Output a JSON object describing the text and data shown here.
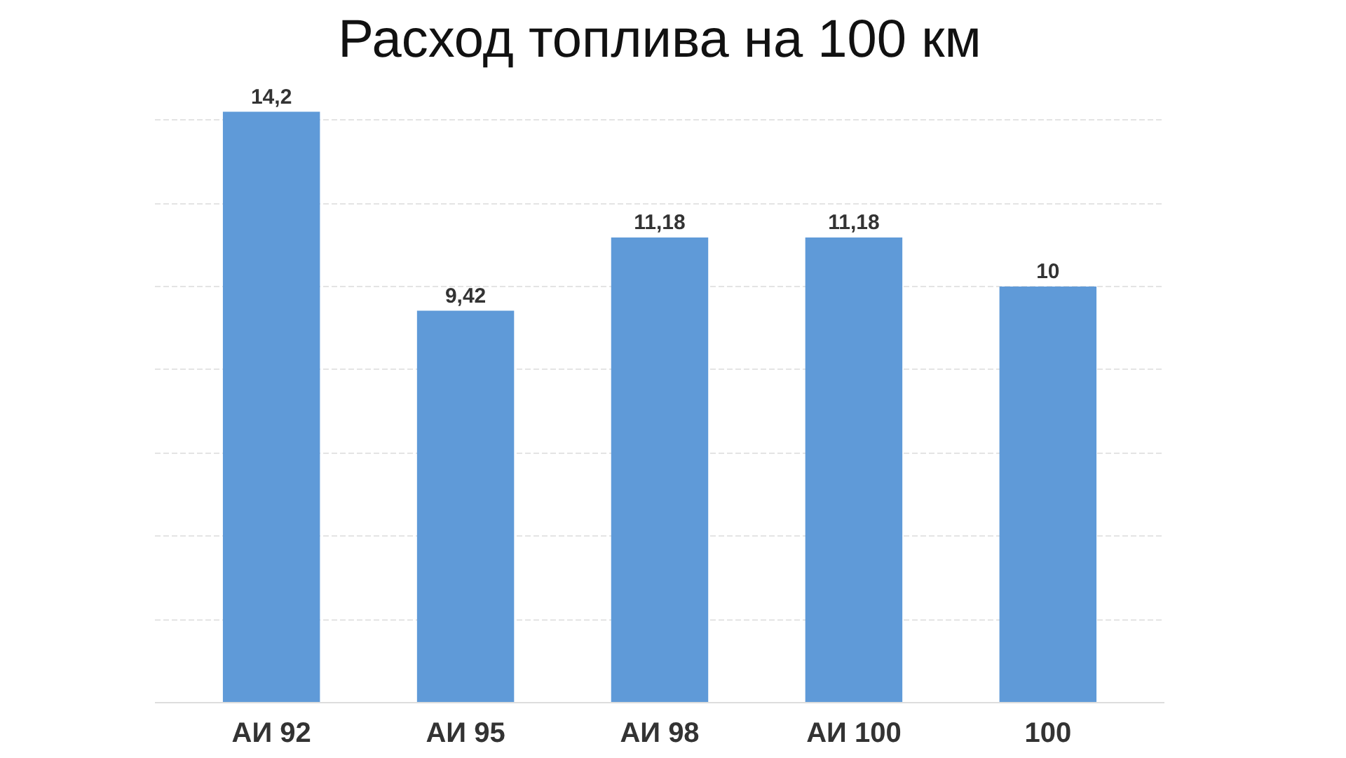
{
  "chart_data": {
    "type": "bar",
    "title": "Расход топлива на 100 км",
    "categories": [
      "АИ 92",
      "АИ 95",
      "АИ 98",
      "АИ 100",
      "100"
    ],
    "values": [
      14.2,
      9.42,
      11.18,
      11.18,
      10
    ],
    "value_labels": [
      "14,2",
      "9,42",
      "11,18",
      "11,18",
      "10"
    ],
    "color": "#5f9ad8",
    "yticks": [
      {
        "value": 0,
        "label": null
      },
      {
        "value": 2,
        "label": null
      },
      {
        "value": 4,
        "label": null
      },
      {
        "value": 6,
        "label": null
      },
      {
        "value": 8,
        "label": null
      },
      {
        "value": 10,
        "label": null
      },
      {
        "value": 12,
        "label": null
      },
      {
        "value": 14,
        "label": null
      }
    ],
    "grid": "y",
    "tick_labels": "x"
  }
}
